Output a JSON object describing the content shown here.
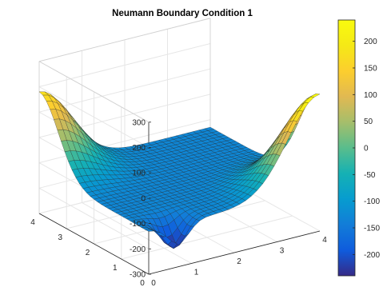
{
  "chart_data": {
    "type": "surface",
    "title": "Neumann Boundary Condition 1",
    "xlabel": "",
    "ylabel": "",
    "zlabel": "",
    "x_range": [
      0,
      4
    ],
    "y_range": [
      0,
      4
    ],
    "z_range": [
      -300,
      300
    ],
    "x_ticks": [
      "0",
      "1",
      "2",
      "3",
      "4"
    ],
    "y_ticks": [
      "0",
      "1",
      "2",
      "3",
      "4"
    ],
    "z_ticks": [
      "-300",
      "-200",
      "-100",
      "0",
      "100",
      "200",
      "300"
    ],
    "grid": true,
    "colormap": "parula",
    "colorbar": {
      "range": [
        -240,
        240
      ],
      "ticks": [
        "200",
        "150",
        "100",
        "50",
        "0",
        "-50",
        "-100",
        "-150",
        "-200"
      ],
      "placement": "right"
    },
    "features": [
      {
        "location": "x=4, y=0",
        "z": 240
      },
      {
        "location": "x=0, y=4",
        "z": 180
      },
      {
        "location": "near x=0, y=0",
        "z": -240
      }
    ],
    "far_field_z": -130
  }
}
